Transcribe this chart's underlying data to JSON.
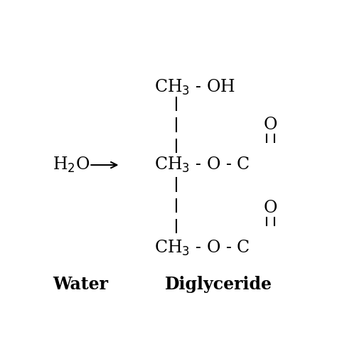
{
  "background_color": "#ffffff",
  "figsize": [
    4.74,
    4.74
  ],
  "dpi": 100,
  "label_water": "Water",
  "label_diglyceride": "Diglyceride",
  "fs_main": 17,
  "fs_water": 17
}
